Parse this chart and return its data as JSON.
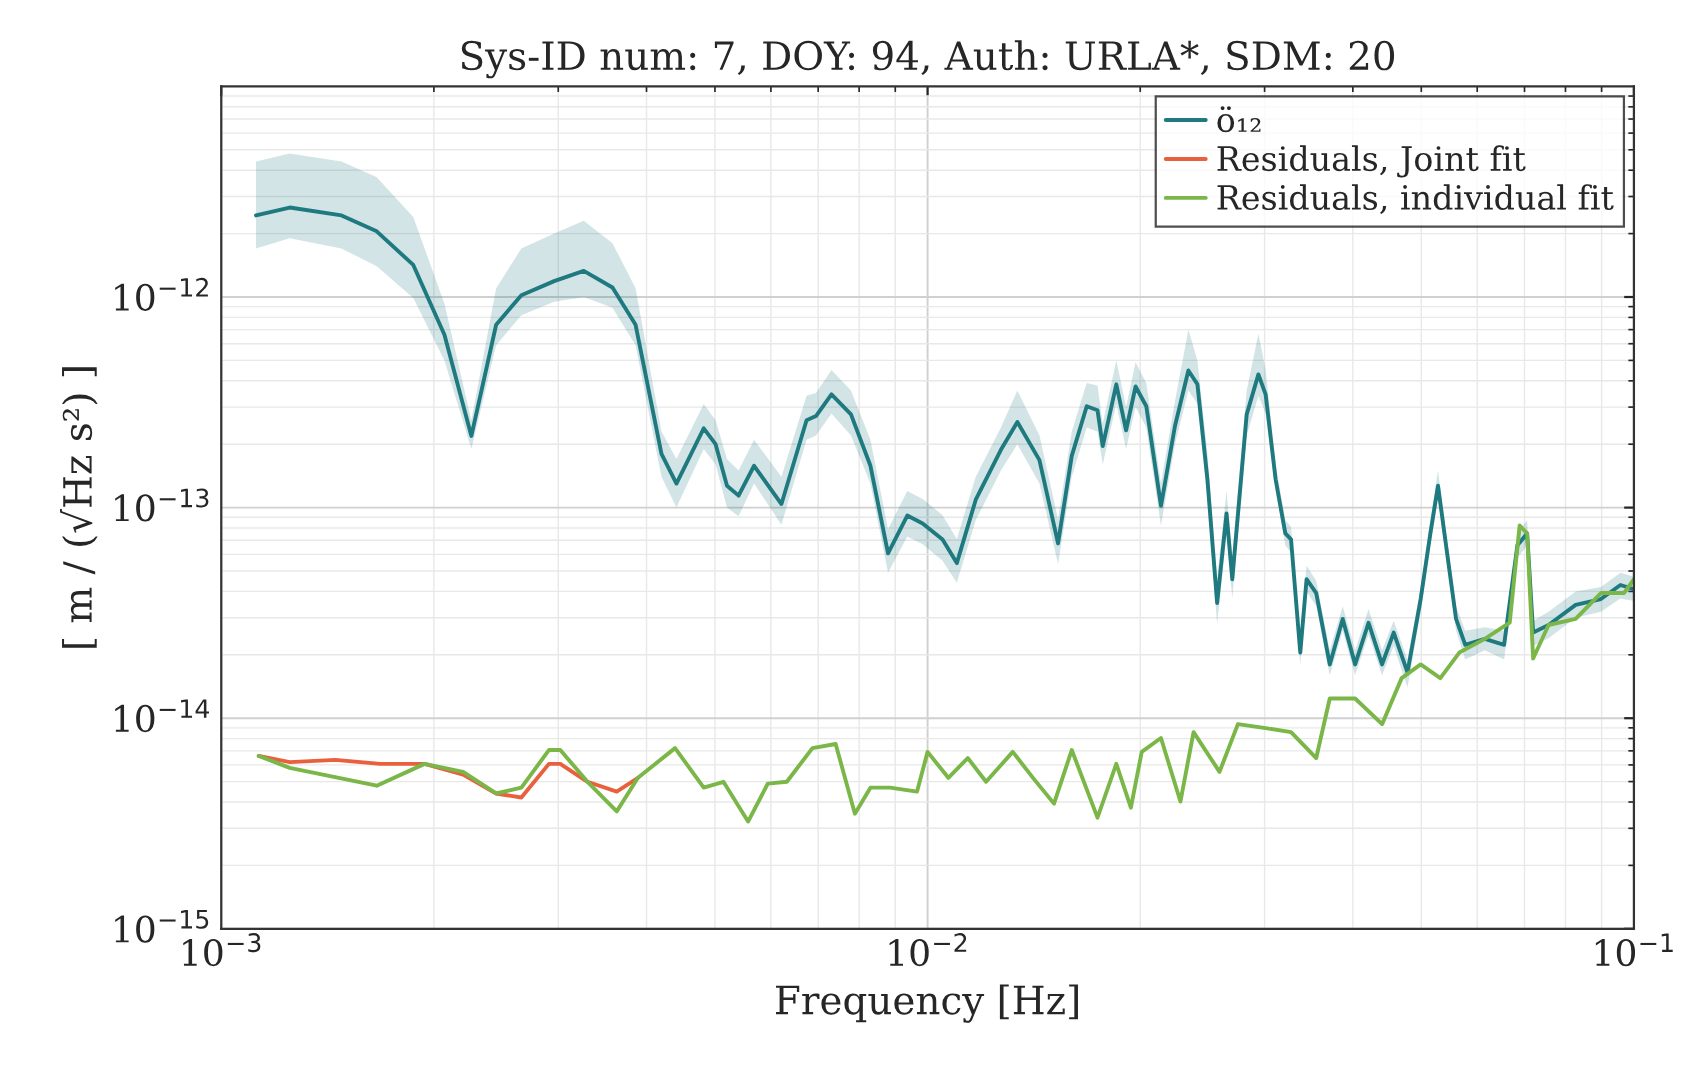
{
  "chart_data": {
    "type": "line",
    "title": "Sys-ID num: 7, DOY: 94, Auth: URLA*, SDM: 20",
    "xlabel": "Frequency [Hz]",
    "ylabel": "[ m / (√Hz s²) ]",
    "log": "xy",
    "grid": true,
    "legend": "top right",
    "xlim": [
      0.001,
      0.1
    ],
    "ylim": [
      1e-15,
      1e-11
    ],
    "xticks": [
      {
        "value": 0.001,
        "label": "10$^{−3}$"
      },
      {
        "value": 0.01,
        "label": "10$^{−2}$"
      },
      {
        "value": 0.1,
        "label": "10$^{−1}$"
      }
    ],
    "yticks": [
      {
        "value": 1e-15,
        "label": "10$^{−15}$"
      },
      {
        "value": 1e-14,
        "label": "10$^{−14}$"
      },
      {
        "value": 1e-13,
        "label": "10$^{−13}$"
      },
      {
        "value": 1e-12,
        "label": "10$^{−12}$"
      }
    ],
    "series": [
      {
        "name": "ö₁₂",
        "color": "#1f7a80",
        "x": [
          0.00112,
          0.00125,
          0.00148,
          0.00166,
          0.00187,
          0.00207,
          0.00226,
          0.00245,
          0.00266,
          0.00296,
          0.00326,
          0.00358,
          0.00386,
          0.0042,
          0.00441,
          0.00482,
          0.00501,
          0.0052,
          0.0054,
          0.00568,
          0.00621,
          0.00674,
          0.00695,
          0.00731,
          0.00779,
          0.0083,
          0.00879,
          0.00936,
          0.00984,
          0.0105,
          0.011,
          0.0117,
          0.0127,
          0.0134,
          0.0144,
          0.0153,
          0.016,
          0.0168,
          0.0174,
          0.0177,
          0.0185,
          0.0191,
          0.0197,
          0.0204,
          0.0214,
          0.0224,
          0.0234,
          0.0241,
          0.0249,
          0.0257,
          0.0265,
          0.027,
          0.0283,
          0.0294,
          0.0301,
          0.0311,
          0.0321,
          0.0327,
          0.0337,
          0.0344,
          0.0355,
          0.0371,
          0.0387,
          0.0403,
          0.0421,
          0.044,
          0.0457,
          0.0478,
          0.0499,
          0.0515,
          0.0528,
          0.0542,
          0.056,
          0.0577,
          0.0615,
          0.0655,
          0.0684,
          0.0706,
          0.072,
          0.0757,
          0.0827,
          0.0898,
          0.0957,
          0.1
        ],
        "values": [
          2.44e-12,
          2.66e-12,
          2.44e-12,
          2.05e-12,
          1.42e-12,
          6.62e-13,
          2.19e-13,
          7.38e-13,
          1.02e-12,
          1.19e-12,
          1.33e-12,
          1.11e-12,
          7.38e-13,
          1.8e-13,
          1.3e-13,
          2.38e-13,
          2e-13,
          1.27e-13,
          1.14e-13,
          1.58e-13,
          1.04e-13,
          2.6e-13,
          2.72e-13,
          3.45e-13,
          2.77e-13,
          1.58e-13,
          6.07e-14,
          9.17e-14,
          8.41e-14,
          7.06e-14,
          5.45e-14,
          1.09e-13,
          1.88e-13,
          2.55e-13,
          1.68e-13,
          6.76e-14,
          1.76e-13,
          3.03e-13,
          2.9e-13,
          1.96e-13,
          3.85e-13,
          2.33e-13,
          3.76e-13,
          3.03e-13,
          1.02e-13,
          2.44e-13,
          4.48e-13,
          3.85e-13,
          1.36e-13,
          3.52e-14,
          9.37e-14,
          4.57e-14,
          2.77e-13,
          4.29e-13,
          3.45e-13,
          1.36e-13,
          7.54e-14,
          7.06e-14,
          2.05e-14,
          4.57e-14,
          3.93e-14,
          1.8e-14,
          2.96e-14,
          1.8e-14,
          2.84e-14,
          1.8e-14,
          2.55e-14,
          1.65e-14,
          3.68e-14,
          7.54e-14,
          1.27e-13,
          6.62e-14,
          2.96e-14,
          2.23e-14,
          2.38e-14,
          2.23e-14,
          6.62e-14,
          7.54e-14,
          2.55e-14,
          2.77e-14,
          3.45e-14,
          3.68e-14,
          4.29e-14,
          4.1e-14
        ],
        "upper": [
          4.4e-12,
          4.8e-12,
          4.4e-12,
          3.7e-12,
          2.4e-12,
          9.3e-13,
          2.6e-13,
          1.1e-12,
          1.7e-12,
          2e-12,
          2.3e-12,
          1.8e-12,
          1.1e-12,
          2.3e-13,
          1.7e-13,
          3.1e-13,
          2.6e-13,
          1.7e-13,
          1.5e-13,
          2.1e-13,
          1.4e-13,
          3.4e-13,
          3.5e-13,
          4.5e-13,
          3.6e-13,
          2.1e-13,
          7.9e-14,
          1.2e-13,
          1.1e-13,
          9.2e-14,
          7.1e-14,
          1.4e-13,
          2.4e-13,
          3.6e-13,
          2.2e-13,
          8.8e-14,
          2.3e-13,
          3.9e-13,
          3.8e-13,
          2.5e-13,
          5e-13,
          3e-13,
          4.9e-13,
          3.9e-13,
          1.3e-13,
          3.2e-13,
          7e-13,
          5e-13,
          1.8e-13,
          4.6e-14,
          1.2e-13,
          5.9e-14,
          3.6e-13,
          6.7e-13,
          4.5e-13,
          1.6e-13,
          8.7e-14,
          8.1e-14,
          2.4e-14,
          5.3e-14,
          4.5e-14,
          2.1e-14,
          3.4e-14,
          2.1e-14,
          3.3e-14,
          2.1e-14,
          2.9e-14,
          1.9e-14,
          4.2e-14,
          8.7e-14,
          1.5e-13,
          7.6e-14,
          3.4e-14,
          2.6e-14,
          2.7e-14,
          2.6e-14,
          7.6e-14,
          8.7e-14,
          2.9e-14,
          3.2e-14,
          4e-14,
          4.2e-14,
          4.9e-14,
          4.7e-14
        ],
        "lower": [
          1.7e-12,
          1.9e-12,
          1.7e-12,
          1.4e-12,
          9.9e-13,
          5e-13,
          1.9e-13,
          5.9e-13,
          8.2e-13,
          9.5e-13,
          1e-12,
          8.9e-13,
          5.9e-13,
          1.4e-13,
          1e-13,
          1.9e-13,
          1.6e-13,
          1e-13,
          9.1e-14,
          1.3e-13,
          8.3e-14,
          2.1e-13,
          2.2e-13,
          2.8e-13,
          2.2e-13,
          1.3e-13,
          4.9e-14,
          7.3e-14,
          6.7e-14,
          5.6e-14,
          4.4e-14,
          8.7e-14,
          1.5e-13,
          2e-13,
          1.3e-13,
          5.4e-14,
          1.4e-13,
          2.4e-13,
          2.3e-13,
          1.6e-13,
          3.1e-13,
          1.9e-13,
          3e-13,
          2.4e-13,
          8.2e-14,
          2e-13,
          3.6e-13,
          3.1e-13,
          1.1e-13,
          2.8e-14,
          7.5e-14,
          3.7e-14,
          2.2e-13,
          3.4e-13,
          2.8e-13,
          1.2e-13,
          6.6e-14,
          6.1e-14,
          1.8e-14,
          4e-14,
          3.4e-14,
          1.6e-14,
          2.6e-14,
          1.6e-14,
          2.5e-14,
          1.6e-14,
          2.2e-14,
          1.4e-14,
          3.2e-14,
          6.6e-14,
          1.1e-13,
          5.8e-14,
          2.6e-14,
          1.9e-14,
          2.1e-14,
          1.9e-14,
          5.8e-14,
          6.6e-14,
          2.2e-14,
          2.4e-14,
          3e-14,
          3.2e-14,
          3.7e-14,
          3.6e-14
        ]
      },
      {
        "name": "Residuals, Joint fit",
        "color": "#e8603c",
        "x": [
          0.00113,
          0.00125,
          0.00145,
          0.00168,
          0.00194,
          0.0022,
          0.00245,
          0.00266,
          0.00291,
          0.00302,
          0.0033,
          0.00363,
          0.00389
        ],
        "values": [
          6.62e-15,
          6.19e-15,
          6.34e-15,
          6.07e-15,
          6.07e-15,
          5.4e-15,
          4.39e-15,
          4.2e-15,
          6.07e-15,
          6.07e-15,
          4.99e-15,
          4.48e-15,
          5.21e-15
        ]
      },
      {
        "name": "Residuals, individual fit",
        "color": "#7ab648",
        "x": [
          0.00113,
          0.00125,
          0.00166,
          0.00194,
          0.0022,
          0.00245,
          0.00266,
          0.00291,
          0.00302,
          0.0033,
          0.00363,
          0.00389,
          0.00439,
          0.00482,
          0.00514,
          0.00557,
          0.00594,
          0.00632,
          0.00687,
          0.00741,
          0.00789,
          0.0083,
          0.00885,
          0.00966,
          0.01,
          0.0107,
          0.0114,
          0.0121,
          0.0132,
          0.0141,
          0.0151,
          0.016,
          0.0174,
          0.0185,
          0.0194,
          0.0201,
          0.0214,
          0.0228,
          0.0238,
          0.0259,
          0.0275,
          0.0301,
          0.0327,
          0.0355,
          0.0371,
          0.0403,
          0.044,
          0.0469,
          0.0499,
          0.0532,
          0.0566,
          0.0615,
          0.0667,
          0.0689,
          0.0706,
          0.072,
          0.0757,
          0.0827,
          0.0898,
          0.0968,
          0.1
        ],
        "values": [
          6.62e-15,
          5.81e-15,
          4.78e-15,
          6.07e-15,
          5.56e-15,
          4.39e-15,
          4.68e-15,
          7.06e-15,
          7.06e-15,
          4.99e-15,
          3.61e-15,
          5.21e-15,
          7.21e-15,
          4.68e-15,
          4.99e-15,
          3.23e-15,
          4.89e-15,
          4.99e-15,
          7.21e-15,
          7.54e-15,
          3.52e-15,
          4.68e-15,
          4.68e-15,
          4.48e-15,
          6.92e-15,
          5.21e-15,
          6.47e-15,
          4.99e-15,
          6.92e-15,
          5.21e-15,
          3.93e-15,
          7.06e-15,
          3.37e-15,
          6.07e-15,
          3.76e-15,
          6.92e-15,
          8.05e-15,
          4.02e-15,
          8.59e-15,
          5.56e-15,
          9.37e-15,
          8.97e-15,
          8.59e-15,
          6.47e-15,
          1.24e-14,
          1.24e-14,
          9.37e-15,
          1.55e-14,
          1.8e-14,
          1.55e-14,
          2.05e-14,
          2.38e-14,
          2.84e-14,
          8.22e-14,
          7.54e-14,
          1.92e-14,
          2.77e-14,
          2.96e-14,
          3.93e-14,
          3.93e-14,
          4.57e-14
        ]
      }
    ]
  }
}
